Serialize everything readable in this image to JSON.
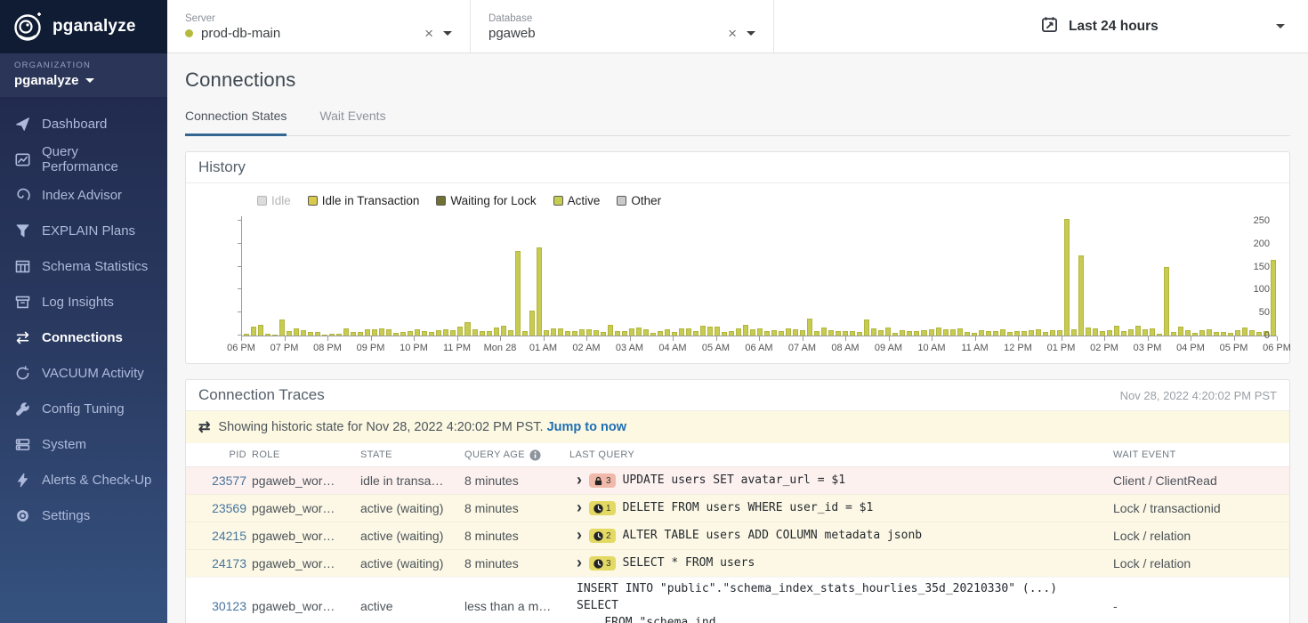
{
  "sidebar": {
    "brand": "pganalyze",
    "organization_label": "ORGANIZATION",
    "organization": "pganalyze",
    "items": [
      {
        "label": "Dashboard",
        "icon": "paper-plane",
        "active": false
      },
      {
        "label": "Query Performance",
        "icon": "chart-line",
        "active": false
      },
      {
        "label": "Index Advisor",
        "icon": "spiral",
        "active": false
      },
      {
        "label": "EXPLAIN Plans",
        "icon": "funnel",
        "active": false
      },
      {
        "label": "Schema Statistics",
        "icon": "table",
        "active": false
      },
      {
        "label": "Log Insights",
        "icon": "archive",
        "active": false
      },
      {
        "label": "Connections",
        "icon": "swap-arrows",
        "active": true
      },
      {
        "label": "VACUUM Activity",
        "icon": "refresh",
        "active": false
      },
      {
        "label": "Config Tuning",
        "icon": "wrench",
        "active": false
      },
      {
        "label": "System",
        "icon": "server",
        "active": false
      },
      {
        "label": "Alerts & Check-Up",
        "icon": "bolt",
        "active": false
      },
      {
        "label": "Settings",
        "icon": "gear",
        "active": false
      }
    ]
  },
  "topbar": {
    "server": {
      "label": "Server",
      "value": "prod-db-main",
      "status_color": "#b5ba3e",
      "clear": "×"
    },
    "database": {
      "label": "Database",
      "value": "pgaweb",
      "clear": "×"
    },
    "time_range": {
      "value": "Last 24 hours"
    }
  },
  "page": {
    "title": "Connections",
    "tabs": [
      {
        "label": "Connection States",
        "active": true
      },
      {
        "label": "Wait Events",
        "active": false
      }
    ]
  },
  "history": {
    "title": "History",
    "legend": [
      {
        "label": "Idle",
        "color": "#d9d9d9",
        "enabled": false
      },
      {
        "label": "Idle in Transaction",
        "color": "#d9ca4b",
        "enabled": true
      },
      {
        "label": "Waiting for Lock",
        "color": "#6f7034",
        "enabled": true
      },
      {
        "label": "Active",
        "color": "#c5ce50",
        "enabled": true
      },
      {
        "label": "Other",
        "color": "#c9c9c9",
        "enabled": true
      }
    ],
    "chart_data": {
      "type": "bar",
      "title": "Connection states history",
      "interval_minutes": 10,
      "x_ticks": [
        "06 PM",
        "07 PM",
        "08 PM",
        "09 PM",
        "10 PM",
        "11 PM",
        "Mon 28",
        "01 AM",
        "02 AM",
        "03 AM",
        "04 AM",
        "05 AM",
        "06 AM",
        "07 AM",
        "08 AM",
        "09 AM",
        "10 AM",
        "11 AM",
        "12 PM",
        "01 PM",
        "02 PM",
        "03 PM",
        "04 PM",
        "05 PM",
        "06 PM"
      ],
      "y_ticks": [
        0,
        50,
        100,
        150,
        200,
        250
      ],
      "ylim": [
        0,
        260
      ],
      "grid": false,
      "legend_position": "top-left",
      "series": [
        {
          "name": "Active",
          "color": "#c7cb52",
          "values": [
            3,
            20,
            24,
            4,
            2,
            35,
            10,
            15,
            12,
            8,
            8,
            2,
            3,
            3,
            16,
            8,
            7,
            14,
            14,
            15,
            14,
            6,
            8,
            10,
            13,
            9,
            8,
            12,
            13,
            12,
            20,
            29,
            13,
            9,
            9,
            17,
            22,
            11,
            185,
            9,
            55,
            193,
            12,
            16,
            16,
            10,
            10,
            13,
            13,
            12,
            7,
            23,
            9,
            10,
            16,
            17,
            13,
            6,
            10,
            14,
            8,
            15,
            15,
            10,
            22,
            19,
            20,
            8,
            10,
            15,
            23,
            14,
            15,
            10,
            12,
            10,
            15,
            13,
            11,
            37,
            9,
            17,
            12,
            10,
            10,
            10,
            8,
            35,
            15,
            12,
            17,
            6,
            11,
            10,
            10,
            12,
            14,
            18,
            13,
            14,
            16,
            8,
            6,
            12,
            10,
            10,
            13,
            7,
            9,
            10,
            12,
            13,
            8,
            12,
            12,
            255,
            14,
            175,
            18,
            15,
            10,
            12,
            21,
            10,
            13,
            21,
            14,
            16,
            3,
            150,
            7,
            19,
            12,
            6,
            12,
            13,
            7,
            7,
            5,
            11,
            17,
            12,
            7,
            9,
            165
          ]
        }
      ]
    }
  },
  "traces": {
    "title": "Connection Traces",
    "timestamp": "Nov 28, 2022 4:20:02 PM PST",
    "notice": {
      "text": "Showing historic state for Nov 28, 2022 4:20:02 PM PST.",
      "link": "Jump to now"
    },
    "columns": [
      {
        "label": "PID"
      },
      {
        "label": "ROLE"
      },
      {
        "label": "STATE"
      },
      {
        "label": "QUERY AGE",
        "icon": "info"
      },
      {
        "label": "LAST QUERY"
      },
      {
        "label": "WAIT EVENT"
      }
    ],
    "rows": [
      {
        "pid": "23577",
        "role": "pgaweb_wor…",
        "state": "idle in transa…",
        "query_age": "8 minutes",
        "expandable": true,
        "badge": {
          "type": "lock",
          "count": "3"
        },
        "query": "UPDATE users SET avatar_url = $1",
        "wait_event": "Client / ClientRead",
        "highlight": "pink"
      },
      {
        "pid": "23569",
        "role": "pgaweb_wor…",
        "state": "active (waiting)",
        "query_age": "8 minutes",
        "expandable": true,
        "badge": {
          "type": "clock",
          "count": "1"
        },
        "query": "DELETE FROM users WHERE user_id = $1",
        "wait_event": "Lock / transactionid",
        "highlight": "yellow"
      },
      {
        "pid": "24215",
        "role": "pgaweb_wor…",
        "state": "active (waiting)",
        "query_age": "8 minutes",
        "expandable": true,
        "badge": {
          "type": "clock",
          "count": "2"
        },
        "query": "ALTER TABLE users ADD COLUMN metadata jsonb",
        "wait_event": "Lock / relation",
        "highlight": "yellow"
      },
      {
        "pid": "24173",
        "role": "pgaweb_wor…",
        "state": "active (waiting)",
        "query_age": "8 minutes",
        "expandable": true,
        "badge": {
          "type": "clock",
          "count": "3"
        },
        "query": "SELECT * FROM users",
        "wait_event": "Lock / relation",
        "highlight": "yellow"
      },
      {
        "pid": "30123",
        "role": "pgaweb_wor…",
        "state": "active",
        "query_age": "less than a m…",
        "expandable": false,
        "query_lines": [
          "INSERT INTO \"public\".\"schema_index_stats_hourlies_35d_20210330\" (...) SELECT",
          "... FROM \"schema_ind..."
        ],
        "wait_event": "-",
        "highlight": "none"
      }
    ]
  }
}
